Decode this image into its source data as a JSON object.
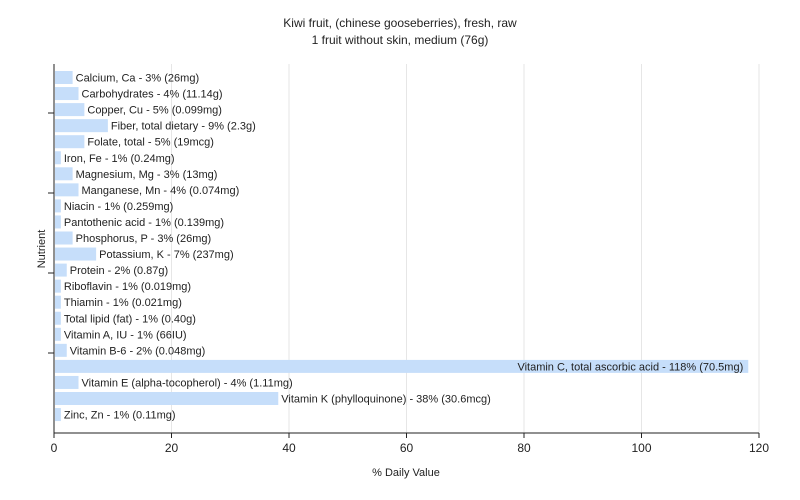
{
  "chart_data": {
    "type": "bar",
    "orientation": "horizontal",
    "title": "Kiwi fruit, (chinese gooseberries), fresh, raw",
    "subtitle": "1 fruit without skin, medium (76g)",
    "xlabel": "% Daily Value",
    "ylabel": "Nutrient",
    "xlim": [
      0,
      120
    ],
    "xticks": [
      "0",
      "20",
      "40",
      "60",
      "80",
      "100",
      "120"
    ],
    "grid": "vertical",
    "bar_color": "#c6defa",
    "categories": [
      "Calcium, Ca",
      "Carbohydrates",
      "Copper, Cu",
      "Fiber, total dietary",
      "Folate, total",
      "Iron, Fe",
      "Magnesium, Mg",
      "Manganese, Mn",
      "Niacin",
      "Pantothenic acid",
      "Phosphorus, P",
      "Potassium, K",
      "Protein",
      "Riboflavin",
      "Thiamin",
      "Total lipid (fat)",
      "Vitamin A, IU",
      "Vitamin B-6",
      "Vitamin C, total ascorbic acid",
      "Vitamin E (alpha-tocopherol)",
      "Vitamin K (phylloquinone)",
      "Zinc, Zn"
    ],
    "values": [
      3,
      4,
      5,
      9,
      5,
      1,
      3,
      4,
      1,
      1,
      3,
      7,
      2,
      1,
      1,
      1,
      1,
      2,
      118,
      4,
      38,
      1
    ],
    "labels": [
      "Calcium, Ca - 3% (26mg)",
      "Carbohydrates - 4% (11.14g)",
      "Copper, Cu - 5% (0.099mg)",
      "Fiber, total dietary - 9% (2.3g)",
      "Folate, total - 5% (19mcg)",
      "Iron, Fe - 1% (0.24mg)",
      "Magnesium, Mg - 3% (13mg)",
      "Manganese, Mn - 4% (0.074mg)",
      "Niacin - 1% (0.259mg)",
      "Pantothenic acid - 1% (0.139mg)",
      "Phosphorus, P - 3% (26mg)",
      "Potassium, K - 7% (237mg)",
      "Protein - 2% (0.87g)",
      "Riboflavin - 1% (0.019mg)",
      "Thiamin - 1% (0.021mg)",
      "Total lipid (fat) - 1% (0.40g)",
      "Vitamin A, IU - 1% (66IU)",
      "Vitamin B-6 - 2% (0.048mg)",
      "Vitamin C, total ascorbic acid - 118% (70.5mg)",
      "Vitamin E (alpha-tocopherol) - 4% (1.11mg)",
      "Vitamin K (phylloquinone) - 38% (30.6mcg)",
      "Zinc, Zn - 1% (0.11mg)"
    ]
  }
}
